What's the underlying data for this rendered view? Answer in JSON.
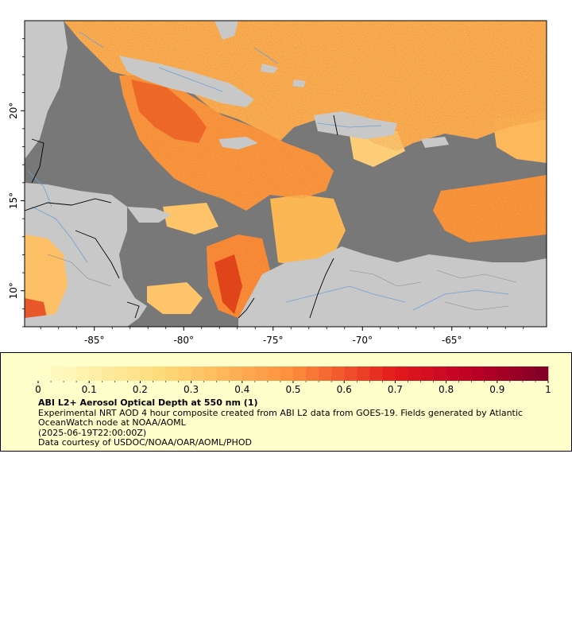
{
  "map": {
    "lon_ticks": [
      {
        "value": -85,
        "label": "-85°"
      },
      {
        "value": -80,
        "label": "-80°"
      },
      {
        "value": -75,
        "label": "-75°"
      },
      {
        "value": -70,
        "label": "-70°"
      },
      {
        "value": -65,
        "label": "-65°"
      }
    ],
    "lat_ticks": [
      {
        "value": 10,
        "label": "10°"
      },
      {
        "value": 15,
        "label": "15°"
      },
      {
        "value": 20,
        "label": "20°"
      }
    ],
    "lon_range": [
      -88.9,
      -59.7
    ],
    "lat_range": [
      8.0,
      25.0
    ],
    "colors": {
      "no_data": "#787878",
      "land": "#c8c8c8",
      "water_lines": "#6fa0d0",
      "borders": "#000000"
    }
  },
  "colorbar": {
    "ticks": [
      "0",
      "0.1",
      "0.2",
      "0.3",
      "0.4",
      "0.5",
      "0.6",
      "0.7",
      "0.8",
      "0.9",
      "1"
    ],
    "min": 0,
    "max": 1,
    "steps": 40,
    "stops": [
      {
        "v": 0.0,
        "c": "#ffffcc"
      },
      {
        "v": 0.25,
        "c": "#fed976"
      },
      {
        "v": 0.5,
        "c": "#fd8d3c"
      },
      {
        "v": 0.7,
        "c": "#e31a1c"
      },
      {
        "v": 0.85,
        "c": "#bd0026"
      },
      {
        "v": 1.0,
        "c": "#800026"
      }
    ]
  },
  "legend": {
    "title": "ABI L2+ Aerosol Optical Depth at 550 nm (1)",
    "description": "Experimental NRT AOD 4 hour composite created from ABI L2 data from GOES-19. Fields generated by Atlantic OceanWatch node at NOAA/AOML",
    "timestamp": "(2025-06-19T22:00:00Z)",
    "credit": "Data courtesy of USDOC/NOAA/OAR/AOML/PHOD",
    "background": "#ffffcc"
  }
}
